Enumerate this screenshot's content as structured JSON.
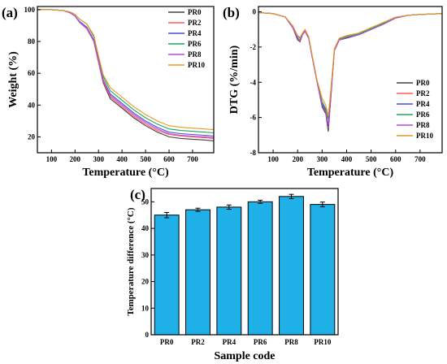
{
  "chart_data": [
    {
      "panel": "(a)",
      "type": "line",
      "xlabel": "Temperature (°C)",
      "ylabel": "Weight (%)",
      "xlim": [
        40,
        790
      ],
      "ylim": [
        10,
        102
      ],
      "x_ticks": [
        100,
        200,
        300,
        400,
        500,
        600,
        700
      ],
      "y_ticks": [
        20,
        40,
        60,
        80,
        100
      ],
      "legend": "top-right",
      "series": [
        {
          "name": "PR0",
          "color": "#404040",
          "x": [
            40,
            100,
            150,
            180,
            200,
            220,
            250,
            280,
            300,
            320,
            350,
            400,
            450,
            500,
            550,
            600,
            650,
            700,
            750,
            790
          ],
          "y": [
            100,
            100,
            99.5,
            98,
            96,
            92,
            88,
            80,
            67,
            54,
            44,
            38,
            32,
            27,
            23,
            20,
            19,
            18.5,
            18,
            17.5
          ]
        },
        {
          "name": "PR2",
          "color": "#ff5a5a",
          "x": [
            40,
            100,
            150,
            180,
            200,
            220,
            250,
            280,
            300,
            320,
            350,
            400,
            450,
            500,
            550,
            600,
            650,
            700,
            750,
            790
          ],
          "y": [
            100,
            100,
            99.5,
            98,
            96,
            92,
            88,
            80,
            67,
            55,
            45,
            39,
            33,
            28,
            24,
            21.5,
            20.5,
            20,
            19.5,
            19
          ]
        },
        {
          "name": "PR4",
          "color": "#4a4ae0",
          "x": [
            40,
            100,
            150,
            180,
            200,
            220,
            250,
            280,
            300,
            320,
            350,
            400,
            450,
            500,
            550,
            600,
            650,
            700,
            750,
            790
          ],
          "y": [
            100,
            100,
            99.5,
            98,
            96,
            92.5,
            89,
            81,
            68,
            56,
            47,
            41,
            35,
            30,
            26,
            23,
            22,
            21.5,
            21,
            20.5
          ]
        },
        {
          "name": "PR6",
          "color": "#1aaa5a",
          "x": [
            40,
            100,
            150,
            180,
            200,
            220,
            250,
            280,
            300,
            320,
            350,
            400,
            450,
            500,
            550,
            600,
            650,
            700,
            750,
            790
          ],
          "y": [
            100,
            100,
            99.5,
            98.5,
            97,
            94,
            91,
            83,
            70,
            58,
            49,
            43,
            37,
            32,
            28,
            25,
            24,
            23.5,
            23,
            22.5
          ]
        },
        {
          "name": "PR8",
          "color": "#b84ad8",
          "x": [
            40,
            100,
            150,
            180,
            200,
            220,
            250,
            280,
            300,
            320,
            350,
            400,
            450,
            500,
            550,
            600,
            650,
            700,
            750,
            790
          ],
          "y": [
            100,
            100,
            99.5,
            98,
            96,
            92,
            88.5,
            80.5,
            68,
            56,
            46,
            40,
            34,
            29,
            25,
            22,
            21,
            20.5,
            20,
            19.5
          ]
        },
        {
          "name": "PR10",
          "color": "#e89a20",
          "x": [
            40,
            100,
            150,
            180,
            200,
            220,
            250,
            280,
            300,
            320,
            350,
            400,
            450,
            500,
            550,
            600,
            650,
            700,
            750,
            790
          ],
          "y": [
            100,
            100,
            99.5,
            98.5,
            97,
            94,
            91,
            84,
            71,
            59,
            51,
            45,
            39,
            34,
            30,
            27,
            26,
            25.5,
            25,
            24.5
          ]
        }
      ]
    },
    {
      "panel": "(b)",
      "type": "line",
      "xlabel": "Temperature (°C)",
      "ylabel": "DTG (%/min)",
      "xlim": [
        40,
        790
      ],
      "ylim": [
        -8,
        0.3
      ],
      "x_ticks": [
        100,
        200,
        300,
        400,
        500,
        600,
        700
      ],
      "y_ticks": [
        0,
        -2,
        -4,
        -6,
        -8
      ],
      "legend": "bottom-right",
      "series": [
        {
          "name": "PR0",
          "color": "#404040",
          "x": [
            40,
            100,
            150,
            180,
            200,
            210,
            220,
            230,
            245,
            260,
            280,
            300,
            315,
            325,
            335,
            350,
            370,
            400,
            450,
            500,
            550,
            600,
            650,
            700,
            790
          ],
          "y": [
            -0.05,
            -0.1,
            -0.3,
            -0.9,
            -1.6,
            -1.7,
            -1.3,
            -1.1,
            -1.5,
            -2.6,
            -4.0,
            -5.4,
            -5.8,
            -6.8,
            -5.0,
            -2.2,
            -1.6,
            -1.5,
            -1.3,
            -1.0,
            -0.7,
            -0.35,
            -0.2,
            -0.15,
            -0.1
          ]
        },
        {
          "name": "PR2",
          "color": "#ff5a5a",
          "x": [
            40,
            100,
            150,
            180,
            200,
            210,
            220,
            230,
            245,
            260,
            280,
            300,
            315,
            325,
            335,
            350,
            370,
            400,
            450,
            500,
            550,
            600,
            650,
            700,
            790
          ],
          "y": [
            -0.05,
            -0.1,
            -0.3,
            -0.9,
            -1.5,
            -1.65,
            -1.3,
            -1.1,
            -1.5,
            -2.6,
            -4.0,
            -5.3,
            -5.7,
            -6.6,
            -4.9,
            -2.2,
            -1.6,
            -1.45,
            -1.3,
            -1.0,
            -0.7,
            -0.35,
            -0.2,
            -0.15,
            -0.1
          ]
        },
        {
          "name": "PR4",
          "color": "#4a4ae0",
          "x": [
            40,
            100,
            150,
            180,
            200,
            210,
            220,
            230,
            245,
            260,
            280,
            300,
            315,
            325,
            335,
            350,
            370,
            400,
            450,
            500,
            550,
            600,
            650,
            700,
            790
          ],
          "y": [
            -0.05,
            -0.1,
            -0.3,
            -0.9,
            -1.5,
            -1.6,
            -1.3,
            -1.1,
            -1.5,
            -2.6,
            -4.0,
            -5.2,
            -5.6,
            -6.5,
            -4.8,
            -2.2,
            -1.6,
            -1.45,
            -1.3,
            -1.0,
            -0.7,
            -0.35,
            -0.2,
            -0.15,
            -0.1
          ]
        },
        {
          "name": "PR6",
          "color": "#1aaa5a",
          "x": [
            40,
            100,
            150,
            180,
            200,
            210,
            220,
            230,
            245,
            260,
            280,
            300,
            315,
            325,
            335,
            350,
            370,
            400,
            450,
            500,
            550,
            600,
            650,
            700,
            790
          ],
          "y": [
            -0.05,
            -0.1,
            -0.3,
            -0.8,
            -1.4,
            -1.5,
            -1.25,
            -1.1,
            -1.5,
            -2.6,
            -4.0,
            -5.1,
            -5.5,
            -6.1,
            -4.6,
            -2.2,
            -1.55,
            -1.4,
            -1.25,
            -0.95,
            -0.65,
            -0.35,
            -0.2,
            -0.15,
            -0.1
          ]
        },
        {
          "name": "PR8",
          "color": "#b84ad8",
          "x": [
            40,
            100,
            150,
            180,
            200,
            210,
            220,
            230,
            245,
            260,
            280,
            300,
            315,
            325,
            335,
            350,
            370,
            400,
            450,
            500,
            550,
            600,
            650,
            700,
            790
          ],
          "y": [
            -0.05,
            -0.1,
            -0.3,
            -0.9,
            -1.5,
            -1.6,
            -1.3,
            -1.1,
            -1.5,
            -2.6,
            -4.0,
            -5.3,
            -5.7,
            -6.4,
            -4.8,
            -2.2,
            -1.6,
            -1.45,
            -1.3,
            -1.0,
            -0.7,
            -0.35,
            -0.2,
            -0.15,
            -0.1
          ]
        },
        {
          "name": "PR10",
          "color": "#e89a20",
          "x": [
            40,
            100,
            150,
            180,
            200,
            210,
            220,
            230,
            245,
            260,
            280,
            300,
            315,
            325,
            335,
            350,
            370,
            400,
            450,
            500,
            550,
            600,
            650,
            700,
            790
          ],
          "y": [
            -0.05,
            -0.1,
            -0.3,
            -0.8,
            -1.35,
            -1.45,
            -1.2,
            -1.0,
            -1.4,
            -2.5,
            -3.9,
            -4.9,
            -5.3,
            -5.9,
            -4.5,
            -2.1,
            -1.5,
            -1.35,
            -1.2,
            -0.9,
            -0.6,
            -0.3,
            -0.2,
            -0.15,
            -0.1
          ]
        }
      ]
    },
    {
      "panel": "(c)",
      "type": "bar",
      "xlabel": "Sample code",
      "ylabel": "Temperature difference (°C)",
      "ylim": [
        0,
        55
      ],
      "y_ticks": [
        0,
        10,
        20,
        30,
        40,
        50
      ],
      "bar_color": "#1fb0e8",
      "categories": [
        "PR0",
        "PR2",
        "PR4",
        "PR6",
        "PR8",
        "PR10"
      ],
      "values": [
        45,
        47,
        48,
        50,
        52,
        49
      ],
      "errors": [
        1.0,
        0.6,
        0.8,
        0.6,
        0.8,
        0.9
      ]
    }
  ]
}
